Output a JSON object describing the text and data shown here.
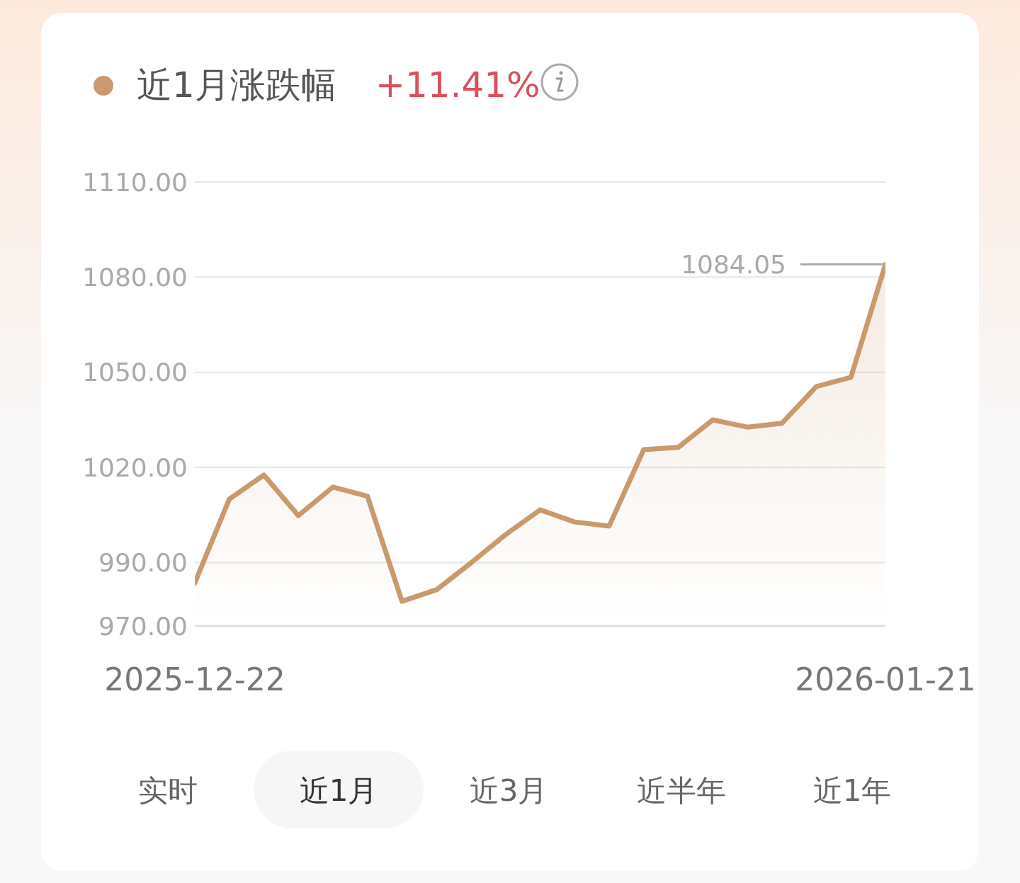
{
  "chart_data": {
    "type": "area",
    "title": "近1月涨跌幅",
    "subtitle": "+11.41%",
    "categories": [
      "2025-12-22",
      null,
      null,
      null,
      null,
      null,
      null,
      null,
      null,
      null,
      null,
      null,
      null,
      null,
      null,
      null,
      null,
      null,
      null,
      null,
      "2026-01-21"
    ],
    "series": [
      {
        "color": "#c99a6e",
        "values": [
          983.6,
          1010.0,
          1017.6,
          1004.8,
          1013.8,
          1010.9,
          977.8,
          981.4,
          989.9,
          998.8,
          1006.6,
          1002.8,
          1001.5,
          1025.6,
          1026.3,
          1035.0,
          1032.7,
          1033.9,
          1045.5,
          1048.4,
          1084.05
        ]
      }
    ],
    "ylim": [
      970,
      1110
    ],
    "yticks": [
      {
        "value": 970,
        "label": "970.00"
      },
      {
        "value": 990,
        "label": "990.00"
      },
      {
        "value": 1020,
        "label": "1020.00"
      },
      {
        "value": 1050,
        "label": "1050.00"
      },
      {
        "value": 1080,
        "label": "1080.00"
      },
      {
        "value": 1110,
        "label": "1110.00"
      }
    ],
    "grid": "y",
    "annotations": [
      "1084.05",
      "实时",
      "近1月",
      "近3月",
      "近半年",
      "近1年"
    ]
  }
}
